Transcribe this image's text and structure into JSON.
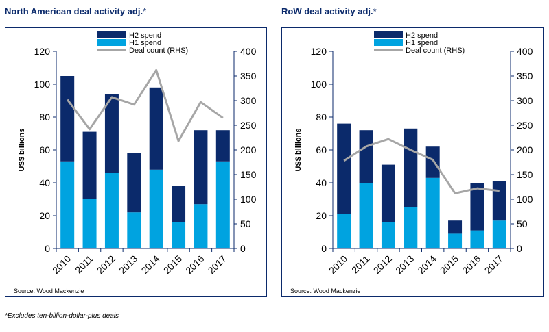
{
  "colors": {
    "h2": "#0b2a6b",
    "h1": "#00a3e0",
    "line": "#a6a6a6",
    "axis": "#0b2a6b",
    "title": "#0b2a6b"
  },
  "footnote": "*Excludes ten-billion-dollar-plus deals",
  "chart_data": [
    {
      "type": "bar",
      "title": "North American deal activity adj.",
      "title_suffix": "*",
      "categories": [
        "2010",
        "2011",
        "2012",
        "2013",
        "2014",
        "2015",
        "2016",
        "2017"
      ],
      "series": [
        {
          "name": "H1 spend",
          "kind": "bar",
          "axis": "left",
          "values": [
            53,
            30,
            46,
            22,
            48,
            16,
            27,
            53
          ]
        },
        {
          "name": "H2 spend",
          "kind": "bar",
          "axis": "left",
          "values": [
            52,
            41,
            48,
            36,
            50,
            22,
            45,
            19
          ]
        },
        {
          "name": "Deal count (RHS)",
          "kind": "line",
          "axis": "right",
          "values": [
            302,
            242,
            307,
            292,
            362,
            218,
            297,
            265
          ]
        }
      ],
      "stacked": true,
      "legend": [
        "H2 spend",
        "H1 spend",
        "Deal count (RHS)"
      ],
      "ylabel": "US$ billions",
      "ylim": [
        0,
        120
      ],
      "yticks": [
        "0",
        "20",
        "40",
        "60",
        "80",
        "100",
        "120"
      ],
      "y2lim": [
        0,
        400
      ],
      "y2ticks": [
        "0",
        "50",
        "100",
        "150",
        "200",
        "250",
        "300",
        "350",
        "400"
      ],
      "source": "Source: Wood Mackenzie"
    },
    {
      "type": "bar",
      "title": "RoW deal activity adj.",
      "title_suffix": "*",
      "categories": [
        "2010",
        "2011",
        "2012",
        "2013",
        "2014",
        "2015",
        "2016",
        "2017"
      ],
      "series": [
        {
          "name": "H1 spend",
          "kind": "bar",
          "axis": "left",
          "values": [
            21,
            40,
            16,
            25,
            43,
            9,
            11,
            17
          ]
        },
        {
          "name": "H2 spend",
          "kind": "bar",
          "axis": "left",
          "values": [
            55,
            32,
            35,
            48,
            19,
            8,
            29,
            24
          ]
        },
        {
          "name": "Deal count (RHS)",
          "kind": "line",
          "axis": "right",
          "values": [
            178,
            207,
            222,
            200,
            180,
            112,
            122,
            117
          ]
        }
      ],
      "stacked": true,
      "legend": [
        "H2 spend",
        "H1 spend",
        "Deal count (RHS)"
      ],
      "ylabel": "US$ billions",
      "ylim": [
        0,
        120
      ],
      "yticks": [
        "0",
        "20",
        "40",
        "60",
        "80",
        "100",
        "120"
      ],
      "y2lim": [
        0,
        400
      ],
      "y2ticks": [
        "0",
        "50",
        "100",
        "150",
        "200",
        "250",
        "300",
        "350",
        "400"
      ],
      "source": "Source: Wood Mackenzie"
    }
  ]
}
